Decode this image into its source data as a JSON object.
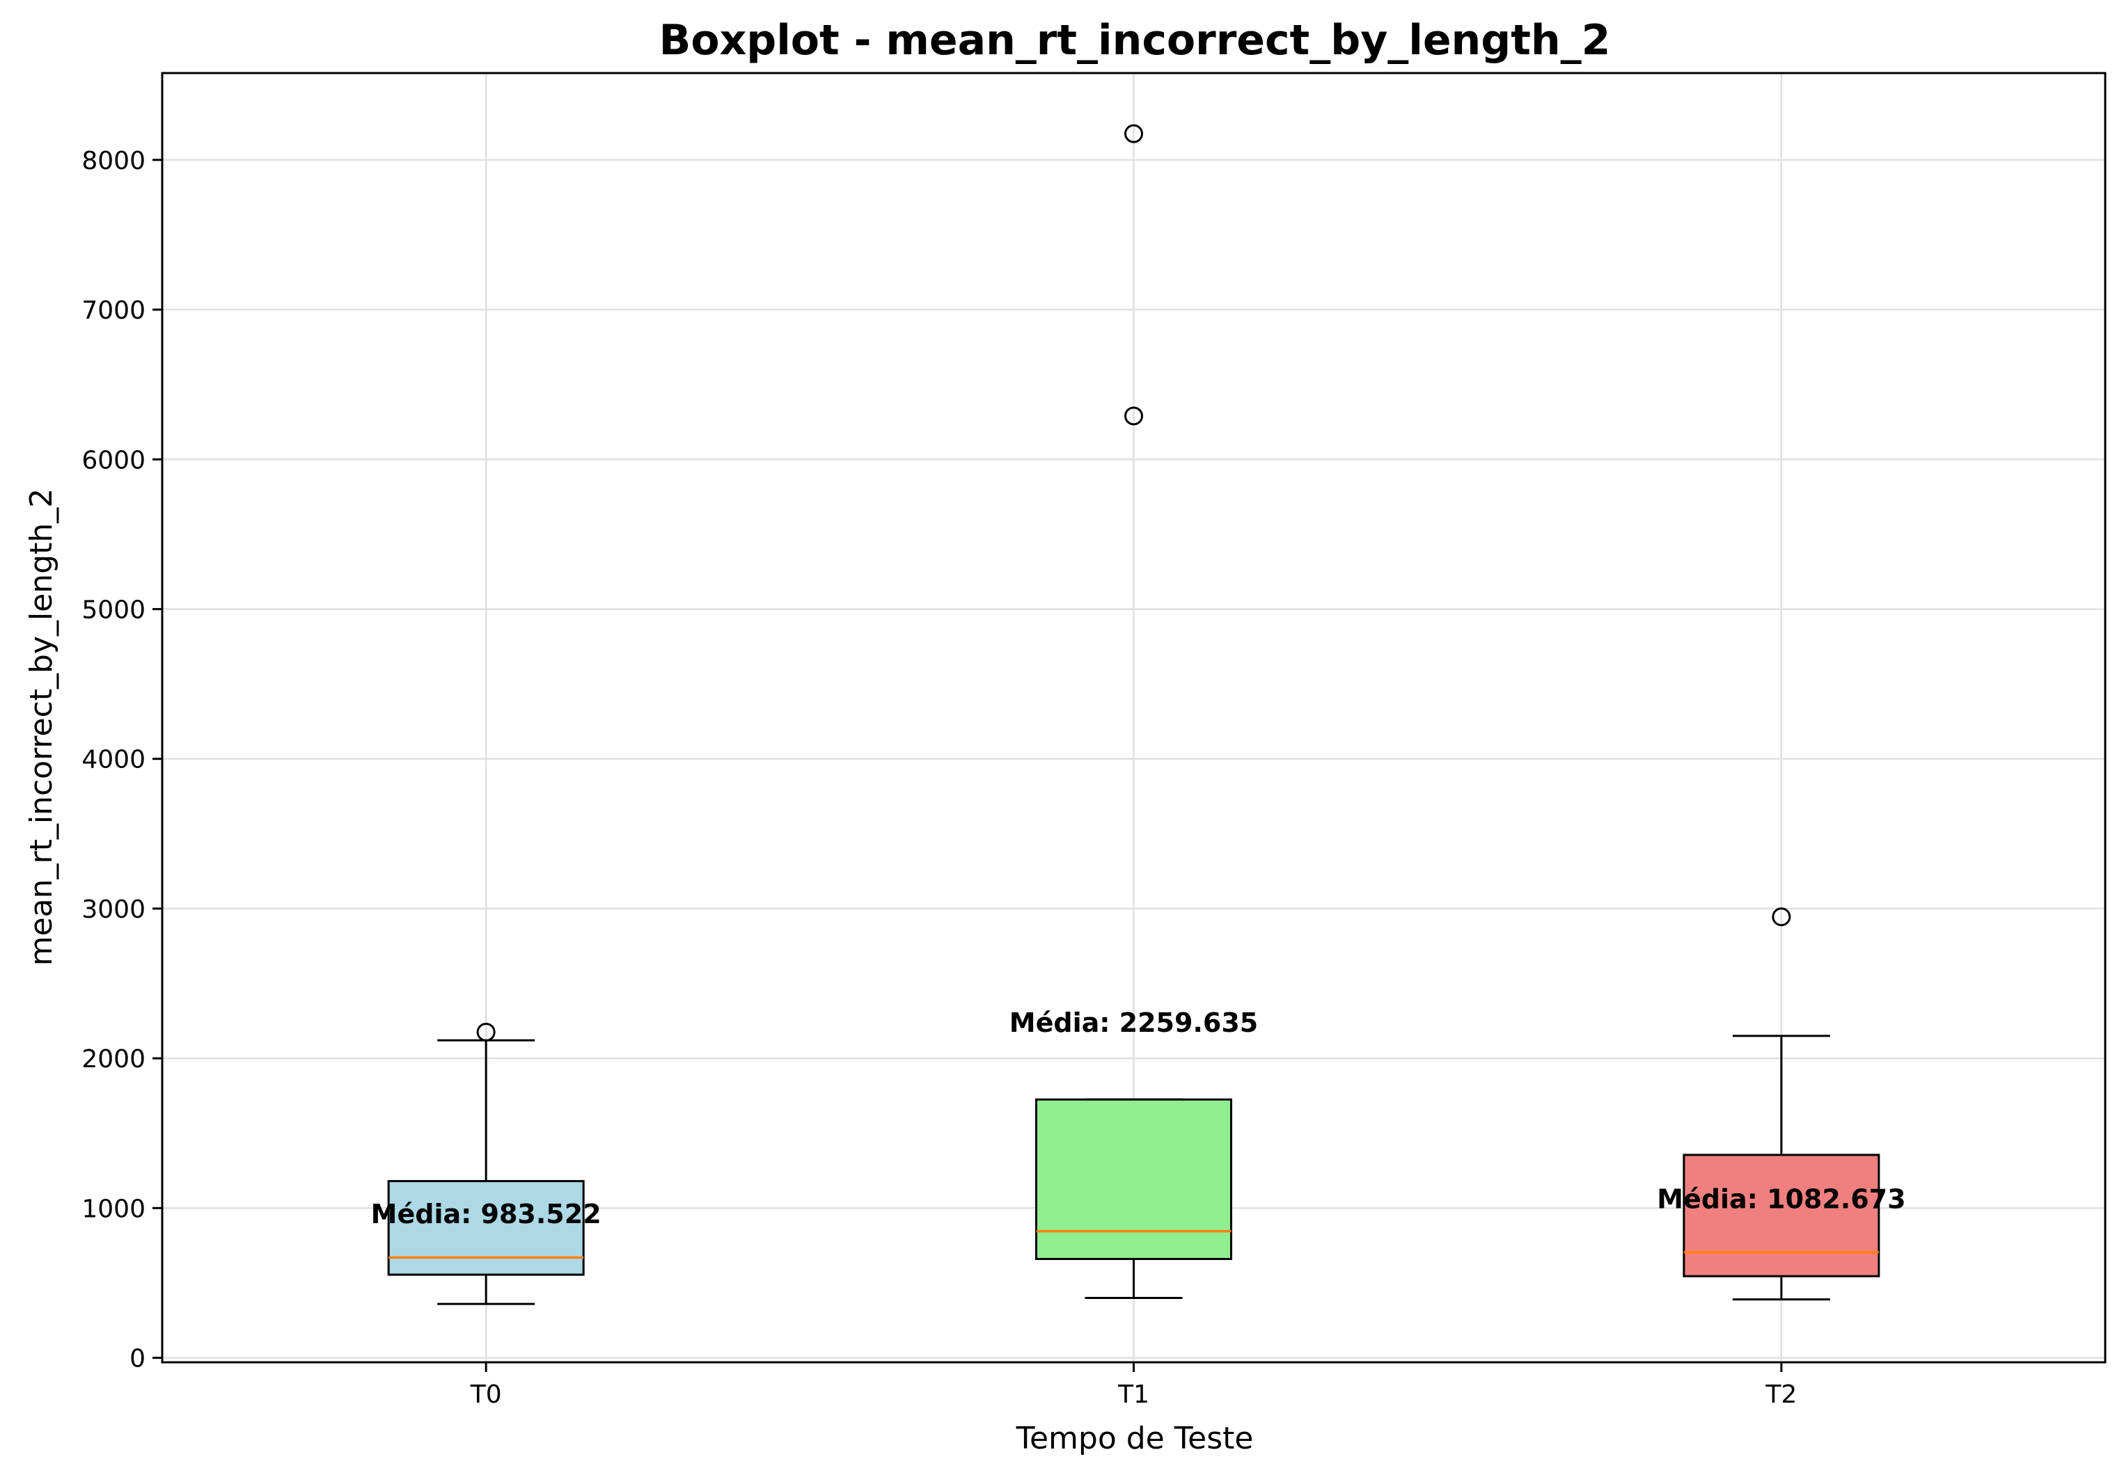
{
  "chart_data": {
    "type": "boxplot",
    "title": "Boxplot - mean_rt_incorrect_by_length_2",
    "xlabel": "Tempo de Teste",
    "ylabel": "mean_rt_incorrect_by_length_2",
    "ylim": [
      -30,
      8580
    ],
    "yticks": [
      0,
      1000,
      2000,
      3000,
      4000,
      5000,
      6000,
      7000,
      8000
    ],
    "ytick_labels": [
      "0",
      "1000",
      "2000",
      "3000",
      "4000",
      "5000",
      "6000",
      "7000",
      "8000"
    ],
    "grid": true,
    "categories": [
      "T0",
      "T1",
      "T2"
    ],
    "boxes": [
      {
        "label": "T0",
        "color": "#add8e6",
        "whisker_low": 360,
        "q1": 555,
        "median": 670,
        "q3": 1180,
        "whisker_high": 2120,
        "outliers": [
          2175
        ],
        "mean": 983.522,
        "mean_label": "Média: 983.522"
      },
      {
        "label": "T1",
        "color": "#90ee90",
        "whisker_low": 400,
        "q1": 660,
        "median": 845,
        "q3": 1725,
        "whisker_high": 1725,
        "outliers": [
          6290,
          8175
        ],
        "mean": 2259.635,
        "mean_label": "Média: 2259.635"
      },
      {
        "label": "T2",
        "color": "#f08080",
        "whisker_low": 390,
        "q1": 545,
        "median": 705,
        "q3": 1355,
        "whisker_high": 2150,
        "outliers": [
          2945
        ],
        "mean": 1082.673,
        "mean_label": "Média: 1082.673"
      }
    ],
    "median_color": "#ff7f0e"
  }
}
